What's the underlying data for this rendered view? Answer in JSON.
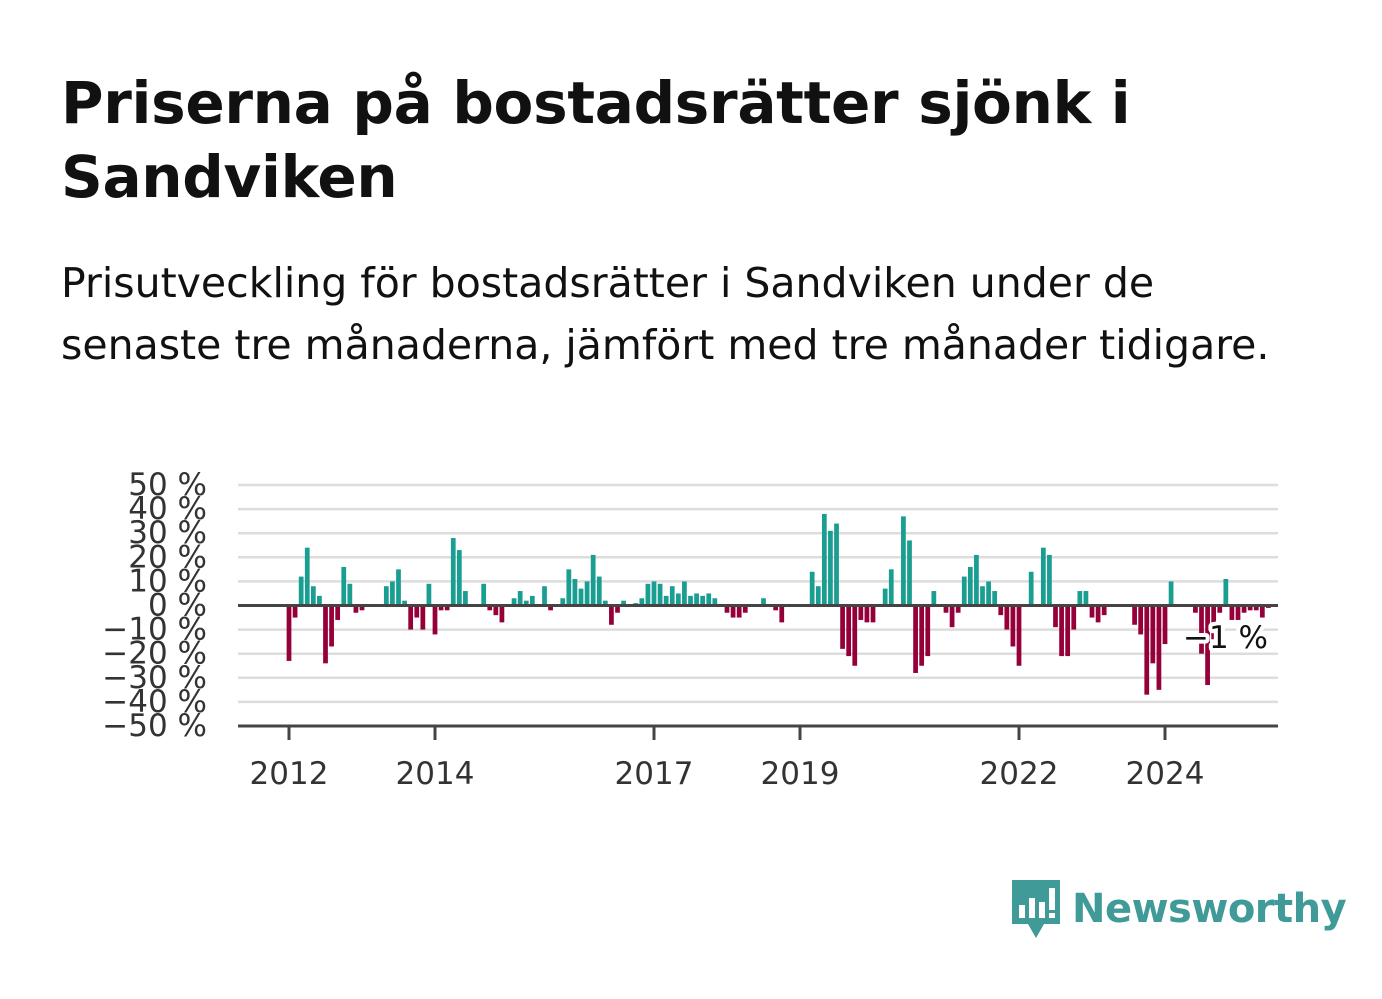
{
  "title": "Priserna på bostadsrätter sjönk i Sandviken",
  "subtitle": "Prisutveckling för bostadsrätter i Sandviken under de senaste tre månaderna, jämfört med tre månader tidigare.",
  "brand": {
    "name": "Newsworthy",
    "icon": "newsworthy-logo-icon",
    "color": "#3f9a98"
  },
  "colors": {
    "positive": "#1a9e92",
    "negative": "#96003a",
    "zero_line": "#444444",
    "grid": "#dddddd"
  },
  "chart_data": {
    "type": "bar",
    "title": "",
    "xlabel": "",
    "ylabel": "",
    "ylim": [
      -50,
      50
    ],
    "y_ticks": [
      50,
      40,
      30,
      20,
      10,
      0,
      -10,
      -20,
      -30,
      -40,
      -50
    ],
    "y_tick_labels": [
      "50 %",
      "40 %",
      "30 %",
      "20 %",
      "10 %",
      "0 %",
      "−10 %",
      "−20 %",
      "−30 %",
      "−40 %",
      "−50 %"
    ],
    "x_ticks": [
      2012,
      2014,
      2017,
      2019,
      2022,
      2024
    ],
    "x_tick_labels": [
      "2012",
      "2014",
      "2017",
      "2019",
      "2022",
      "2024"
    ],
    "grid": true,
    "start": "2012-01",
    "end": "2024-09",
    "last_label": "−1 %",
    "values": [
      -23,
      -5,
      12,
      24,
      8,
      4,
      -24,
      -17,
      -6,
      16,
      9,
      -3,
      -2,
      0,
      0,
      0,
      8,
      10,
      15,
      2,
      -10,
      -5,
      -10,
      9,
      -12,
      -2,
      -2,
      28,
      23,
      6,
      0,
      0,
      9,
      -2,
      -4,
      -7,
      0,
      3,
      6,
      2,
      4,
      0,
      8,
      -2,
      0,
      3,
      15,
      11,
      7,
      10,
      21,
      12,
      2,
      -8,
      -3,
      2,
      0,
      1,
      3,
      9,
      10,
      9,
      4,
      8,
      5,
      10,
      4,
      5,
      4,
      5,
      3,
      0,
      -3,
      -5,
      -5,
      -3,
      0,
      0,
      3,
      0,
      -2,
      -7,
      0,
      0,
      0,
      0,
      14,
      8,
      38,
      31,
      34,
      -18,
      -21,
      -25,
      -6,
      -7,
      -7,
      0,
      7,
      15,
      0,
      37,
      27,
      -28,
      -25,
      -21,
      6,
      0,
      -3,
      -9,
      -3,
      12,
      16,
      21,
      8,
      10,
      6,
      -4,
      -10,
      -17,
      -25,
      0,
      14,
      0,
      24,
      21,
      -9,
      -21,
      -21,
      -10,
      6,
      6,
      -5,
      -7,
      -4,
      0,
      0,
      0,
      0,
      -8,
      -12,
      -37,
      -24,
      -35,
      -16,
      10,
      0,
      0,
      0,
      -3,
      -20,
      -33,
      -14,
      -3,
      11,
      -6,
      -6,
      -3,
      -2,
      -2,
      -5,
      -1
    ]
  }
}
